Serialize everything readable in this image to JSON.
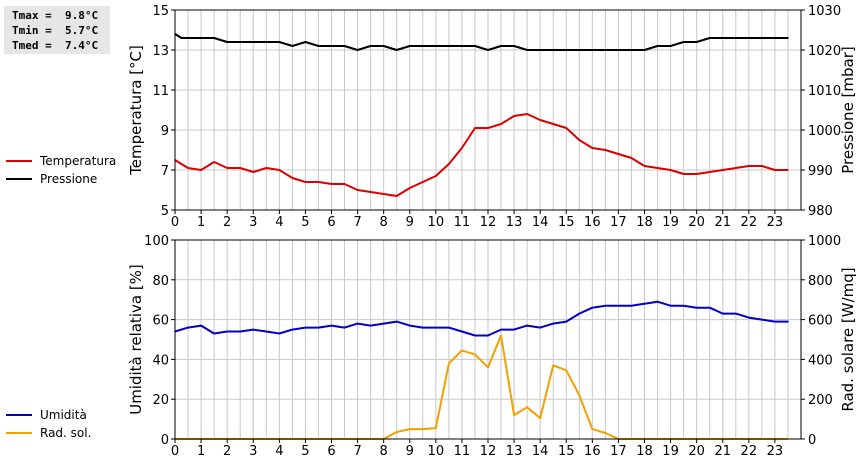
{
  "stats": {
    "tmax": "Tmax =  9.8°C",
    "tmin": "Tmin =  5.7°C",
    "tmed": "Tmed =  7.4°C"
  },
  "colors": {
    "temperature": "#dd0000",
    "pressure": "#000000",
    "humidity": "#0000cc",
    "solar": "#f0a000",
    "grid": "#c8c8c8"
  },
  "legend_top": [
    {
      "label": "Temperatura",
      "color": "#dd0000"
    },
    {
      "label": "Pressione",
      "color": "#000000"
    }
  ],
  "legend_bottom": [
    {
      "label": "Umidità",
      "color": "#0000cc"
    },
    {
      "label": "Rad. sol.",
      "color": "#f0a000"
    }
  ],
  "chart_data": [
    {
      "type": "line",
      "x_ticks": [
        "0",
        "1",
        "2",
        "3",
        "4",
        "5",
        "6",
        "7",
        "8",
        "9",
        "10",
        "11",
        "12",
        "13",
        "14",
        "15",
        "16",
        "17",
        "18",
        "19",
        "20",
        "21",
        "22",
        "23"
      ],
      "xlim": [
        0,
        24
      ],
      "ylabel": "Temperatura [°C]",
      "ylim": [
        5,
        15
      ],
      "y_ticks": [
        "5",
        "7",
        "9",
        "11",
        "13",
        "15"
      ],
      "y2label": "Pressione [mbar]",
      "y2lim": [
        980,
        1030
      ],
      "y2_ticks": [
        "980",
        "990",
        "1000",
        "1010",
        "1020",
        "1030"
      ],
      "grid": true,
      "series": [
        {
          "name": "Temperatura",
          "axis": "left",
          "color": "#dd0000",
          "x": [
            0,
            0.25,
            0.5,
            1,
            1.5,
            2,
            2.5,
            3,
            3.5,
            4,
            4.5,
            5,
            5.5,
            6,
            6.5,
            7,
            7.5,
            8,
            8.5,
            9,
            9.5,
            10,
            10.5,
            11,
            11.5,
            12,
            12.5,
            13,
            13.5,
            14,
            14.5,
            15,
            15.5,
            16,
            16.5,
            17,
            17.5,
            18,
            18.5,
            19,
            19.5,
            20,
            20.5,
            21,
            21.5,
            22,
            22.5,
            23,
            23.5
          ],
          "y": [
            7.5,
            7.3,
            7.1,
            7.0,
            7.4,
            7.1,
            7.1,
            6.9,
            7.1,
            7.0,
            6.6,
            6.4,
            6.4,
            6.3,
            6.3,
            6.0,
            5.9,
            5.8,
            5.7,
            6.1,
            6.4,
            6.7,
            7.3,
            8.1,
            9.1,
            9.1,
            9.3,
            9.7,
            9.8,
            9.5,
            9.3,
            9.1,
            8.5,
            8.1,
            8.0,
            7.8,
            7.6,
            7.2,
            7.1,
            7.0,
            6.8,
            6.8,
            6.9,
            7.0,
            7.1,
            7.2,
            7.2,
            7.0,
            7.0
          ]
        },
        {
          "name": "Pressione",
          "axis": "right",
          "color": "#000000",
          "x": [
            0,
            0.25,
            0.5,
            1,
            1.5,
            2,
            2.5,
            3,
            3.5,
            4,
            4.5,
            5,
            5.5,
            6,
            6.5,
            7,
            7.5,
            8,
            8.5,
            9,
            9.5,
            10,
            10.5,
            11,
            11.5,
            12,
            12.5,
            13,
            13.5,
            14,
            14.5,
            15,
            15.5,
            16,
            16.5,
            17,
            17.5,
            18,
            18.5,
            19,
            19.5,
            20,
            20.5,
            21,
            21.5,
            22,
            22.5,
            23,
            23.5
          ],
          "y": [
            1024,
            1023,
            1023,
            1023,
            1023,
            1022,
            1022,
            1022,
            1022,
            1022,
            1021,
            1022,
            1021,
            1021,
            1021,
            1020,
            1021,
            1021,
            1020,
            1021,
            1021,
            1021,
            1021,
            1021,
            1021,
            1020,
            1021,
            1021,
            1020,
            1020,
            1020,
            1020,
            1020,
            1020,
            1020,
            1020,
            1020,
            1020,
            1021,
            1021,
            1022,
            1022,
            1023,
            1023,
            1023,
            1023,
            1023,
            1023,
            1023
          ]
        }
      ]
    },
    {
      "type": "area",
      "x_ticks": [
        "0",
        "1",
        "2",
        "3",
        "4",
        "5",
        "6",
        "7",
        "8",
        "9",
        "10",
        "11",
        "12",
        "13",
        "14",
        "15",
        "16",
        "17",
        "18",
        "19",
        "20",
        "21",
        "22",
        "23"
      ],
      "xlim": [
        0,
        24
      ],
      "ylabel": "Umidità relativa [%]",
      "ylim": [
        0,
        100
      ],
      "y_ticks": [
        "0",
        "20",
        "40",
        "60",
        "80",
        "100"
      ],
      "y2label": "Rad. solare [W/mq]",
      "y2lim": [
        0,
        1000
      ],
      "y2_ticks": [
        "0",
        "200",
        "400",
        "600",
        "800",
        "1000"
      ],
      "grid": true,
      "series": [
        {
          "name": "Umidità",
          "axis": "left",
          "color": "#0000cc",
          "x": [
            0,
            0.5,
            1,
            1.5,
            2,
            2.5,
            3,
            3.5,
            4,
            4.5,
            5,
            5.5,
            6,
            6.5,
            7,
            7.5,
            8,
            8.5,
            9,
            9.5,
            10,
            10.5,
            11,
            11.5,
            12,
            12.5,
            13,
            13.5,
            14,
            14.5,
            15,
            15.5,
            16,
            16.5,
            17,
            17.5,
            18,
            18.5,
            19,
            19.5,
            20,
            20.5,
            21,
            21.5,
            22,
            22.5,
            23,
            23.5
          ],
          "y": [
            54,
            56,
            57,
            53,
            54,
            54,
            55,
            54,
            53,
            55,
            56,
            56,
            57,
            56,
            58,
            57,
            58,
            59,
            57,
            56,
            56,
            56,
            54,
            52,
            52,
            55,
            55,
            57,
            56,
            58,
            59,
            63,
            66,
            67,
            67,
            67,
            68,
            69,
            67,
            67,
            66,
            66,
            63,
            63,
            61,
            60,
            59,
            59
          ]
        },
        {
          "name": "Rad. sol.",
          "axis": "right",
          "color": "#f0a000",
          "x": [
            0,
            1,
            2,
            3,
            4,
            5,
            6,
            7,
            7.5,
            8,
            8.5,
            9,
            9.5,
            10,
            10.5,
            11,
            11.5,
            12,
            12.5,
            13,
            13.5,
            14,
            14.5,
            15,
            15.5,
            16,
            16.5,
            17,
            18,
            19,
            20,
            21,
            22,
            23,
            23.5
          ],
          "y": [
            0,
            0,
            0,
            0,
            0,
            0,
            0,
            0,
            0,
            0,
            35,
            50,
            50,
            55,
            380,
            445,
            425,
            360,
            520,
            120,
            160,
            105,
            370,
            345,
            220,
            50,
            30,
            0,
            0,
            0,
            0,
            0,
            0,
            0,
            0
          ]
        }
      ]
    }
  ]
}
